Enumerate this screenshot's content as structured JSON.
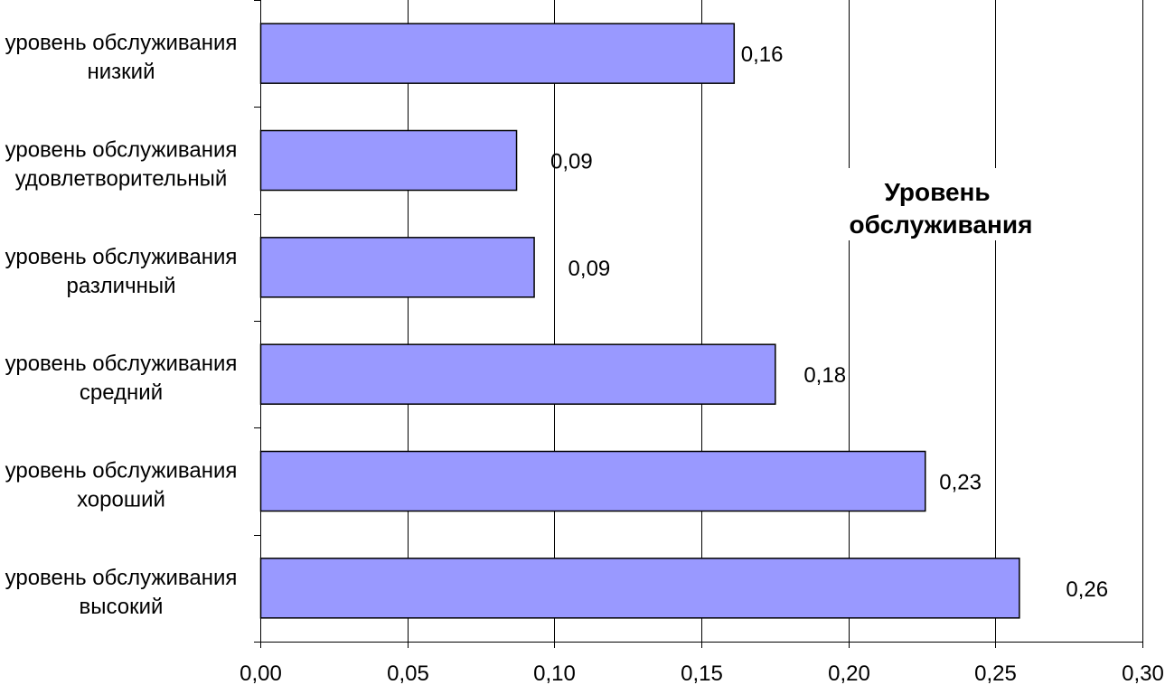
{
  "chart_data": {
    "type": "bar",
    "orientation": "horizontal",
    "categories": [
      [
        "уровень обслуживания",
        "низкий"
      ],
      [
        "уровень обслуживания",
        "удовлетворительный"
      ],
      [
        "уровень обслуживания",
        "различный"
      ],
      [
        "уровень обслуживания",
        "средний"
      ],
      [
        "уровень обслуживания",
        "хороший"
      ],
      [
        "уровень обслуживания",
        "высокий"
      ]
    ],
    "series": [
      {
        "name": "Уровень обслуживания",
        "values": [
          0.161,
          0.087,
          0.093,
          0.175,
          0.226,
          0.258
        ],
        "labels": [
          "0,16",
          "0,09",
          "0,09",
          "0,18",
          "0,23",
          "0,26"
        ]
      }
    ],
    "xlim": [
      0,
      0.3
    ],
    "x_ticks": [
      "0,00",
      "0,05",
      "0,10",
      "0,15",
      "0,20",
      "0,25",
      "0,30"
    ],
    "grid": "vertical",
    "legend": [
      "Уровень",
      "обслуживания"
    ],
    "legend_placement": "right",
    "colors": {
      "bar_fill": "#9999ff",
      "bar_stroke": "#000000",
      "grid": "#000000"
    }
  }
}
